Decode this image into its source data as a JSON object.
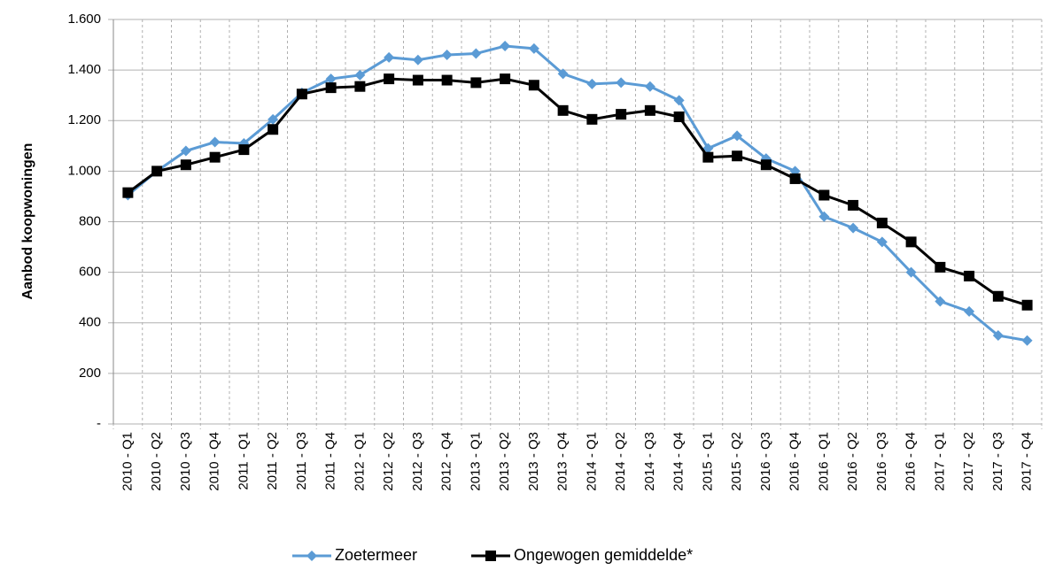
{
  "chart_data": {
    "type": "line",
    "y_label": "Aanbod koopwoningen",
    "categories": [
      "2010 - Q1",
      "2010 - Q2",
      "2010 - Q3",
      "2010 - Q4",
      "2011 - Q1",
      "2011 - Q2",
      "2011 - Q3",
      "2011 - Q4",
      "2012 - Q1",
      "2012 - Q2",
      "2012 - Q3",
      "2012 - Q4",
      "2013 - Q1",
      "2013 - Q2",
      "2013 - Q3",
      "2013 - Q4",
      "2014 - Q1",
      "2014 - Q2",
      "2014 - Q3",
      "2014 - Q4",
      "2015 - Q1",
      "2015 - Q2",
      "2016 - Q3",
      "2016 - Q4",
      "2016 - Q1",
      "2016 - Q2",
      "2016 - Q3",
      "2016 - Q4",
      "2017 - Q1",
      "2017 - Q2",
      "2017 - Q3",
      "2017 - Q4"
    ],
    "series": [
      {
        "name": "Zoetermeer",
        "color": "#5b9bd5",
        "marker": "diamond",
        "values": [
          905,
          1000,
          1080,
          1115,
          1110,
          1205,
          1310,
          1365,
          1380,
          1450,
          1440,
          1460,
          1465,
          1495,
          1485,
          1385,
          1345,
          1350,
          1335,
          1280,
          1090,
          1140,
          1050,
          1000,
          820,
          775,
          720,
          600,
          485,
          445,
          350,
          330
        ]
      },
      {
        "name": "Ongewogen gemiddelde*",
        "color": "#000000",
        "marker": "square",
        "values": [
          915,
          1000,
          1025,
          1055,
          1085,
          1165,
          1305,
          1330,
          1335,
          1365,
          1360,
          1360,
          1350,
          1365,
          1340,
          1240,
          1205,
          1225,
          1240,
          1215,
          1055,
          1060,
          1025,
          970,
          905,
          865,
          795,
          720,
          620,
          585,
          505,
          470
        ]
      }
    ],
    "ylim": [
      0,
      1600
    ],
    "yticks": [
      {
        "value": 0,
        "label": "-"
      },
      200,
      400,
      600,
      800,
      {
        "value": 1000,
        "label": "1.000"
      },
      {
        "value": 1200,
        "label": "1.200"
      },
      {
        "value": 1400,
        "label": "1.400"
      },
      {
        "value": 1600,
        "label": "1.600"
      }
    ],
    "grid": true,
    "legend": "bottom"
  }
}
